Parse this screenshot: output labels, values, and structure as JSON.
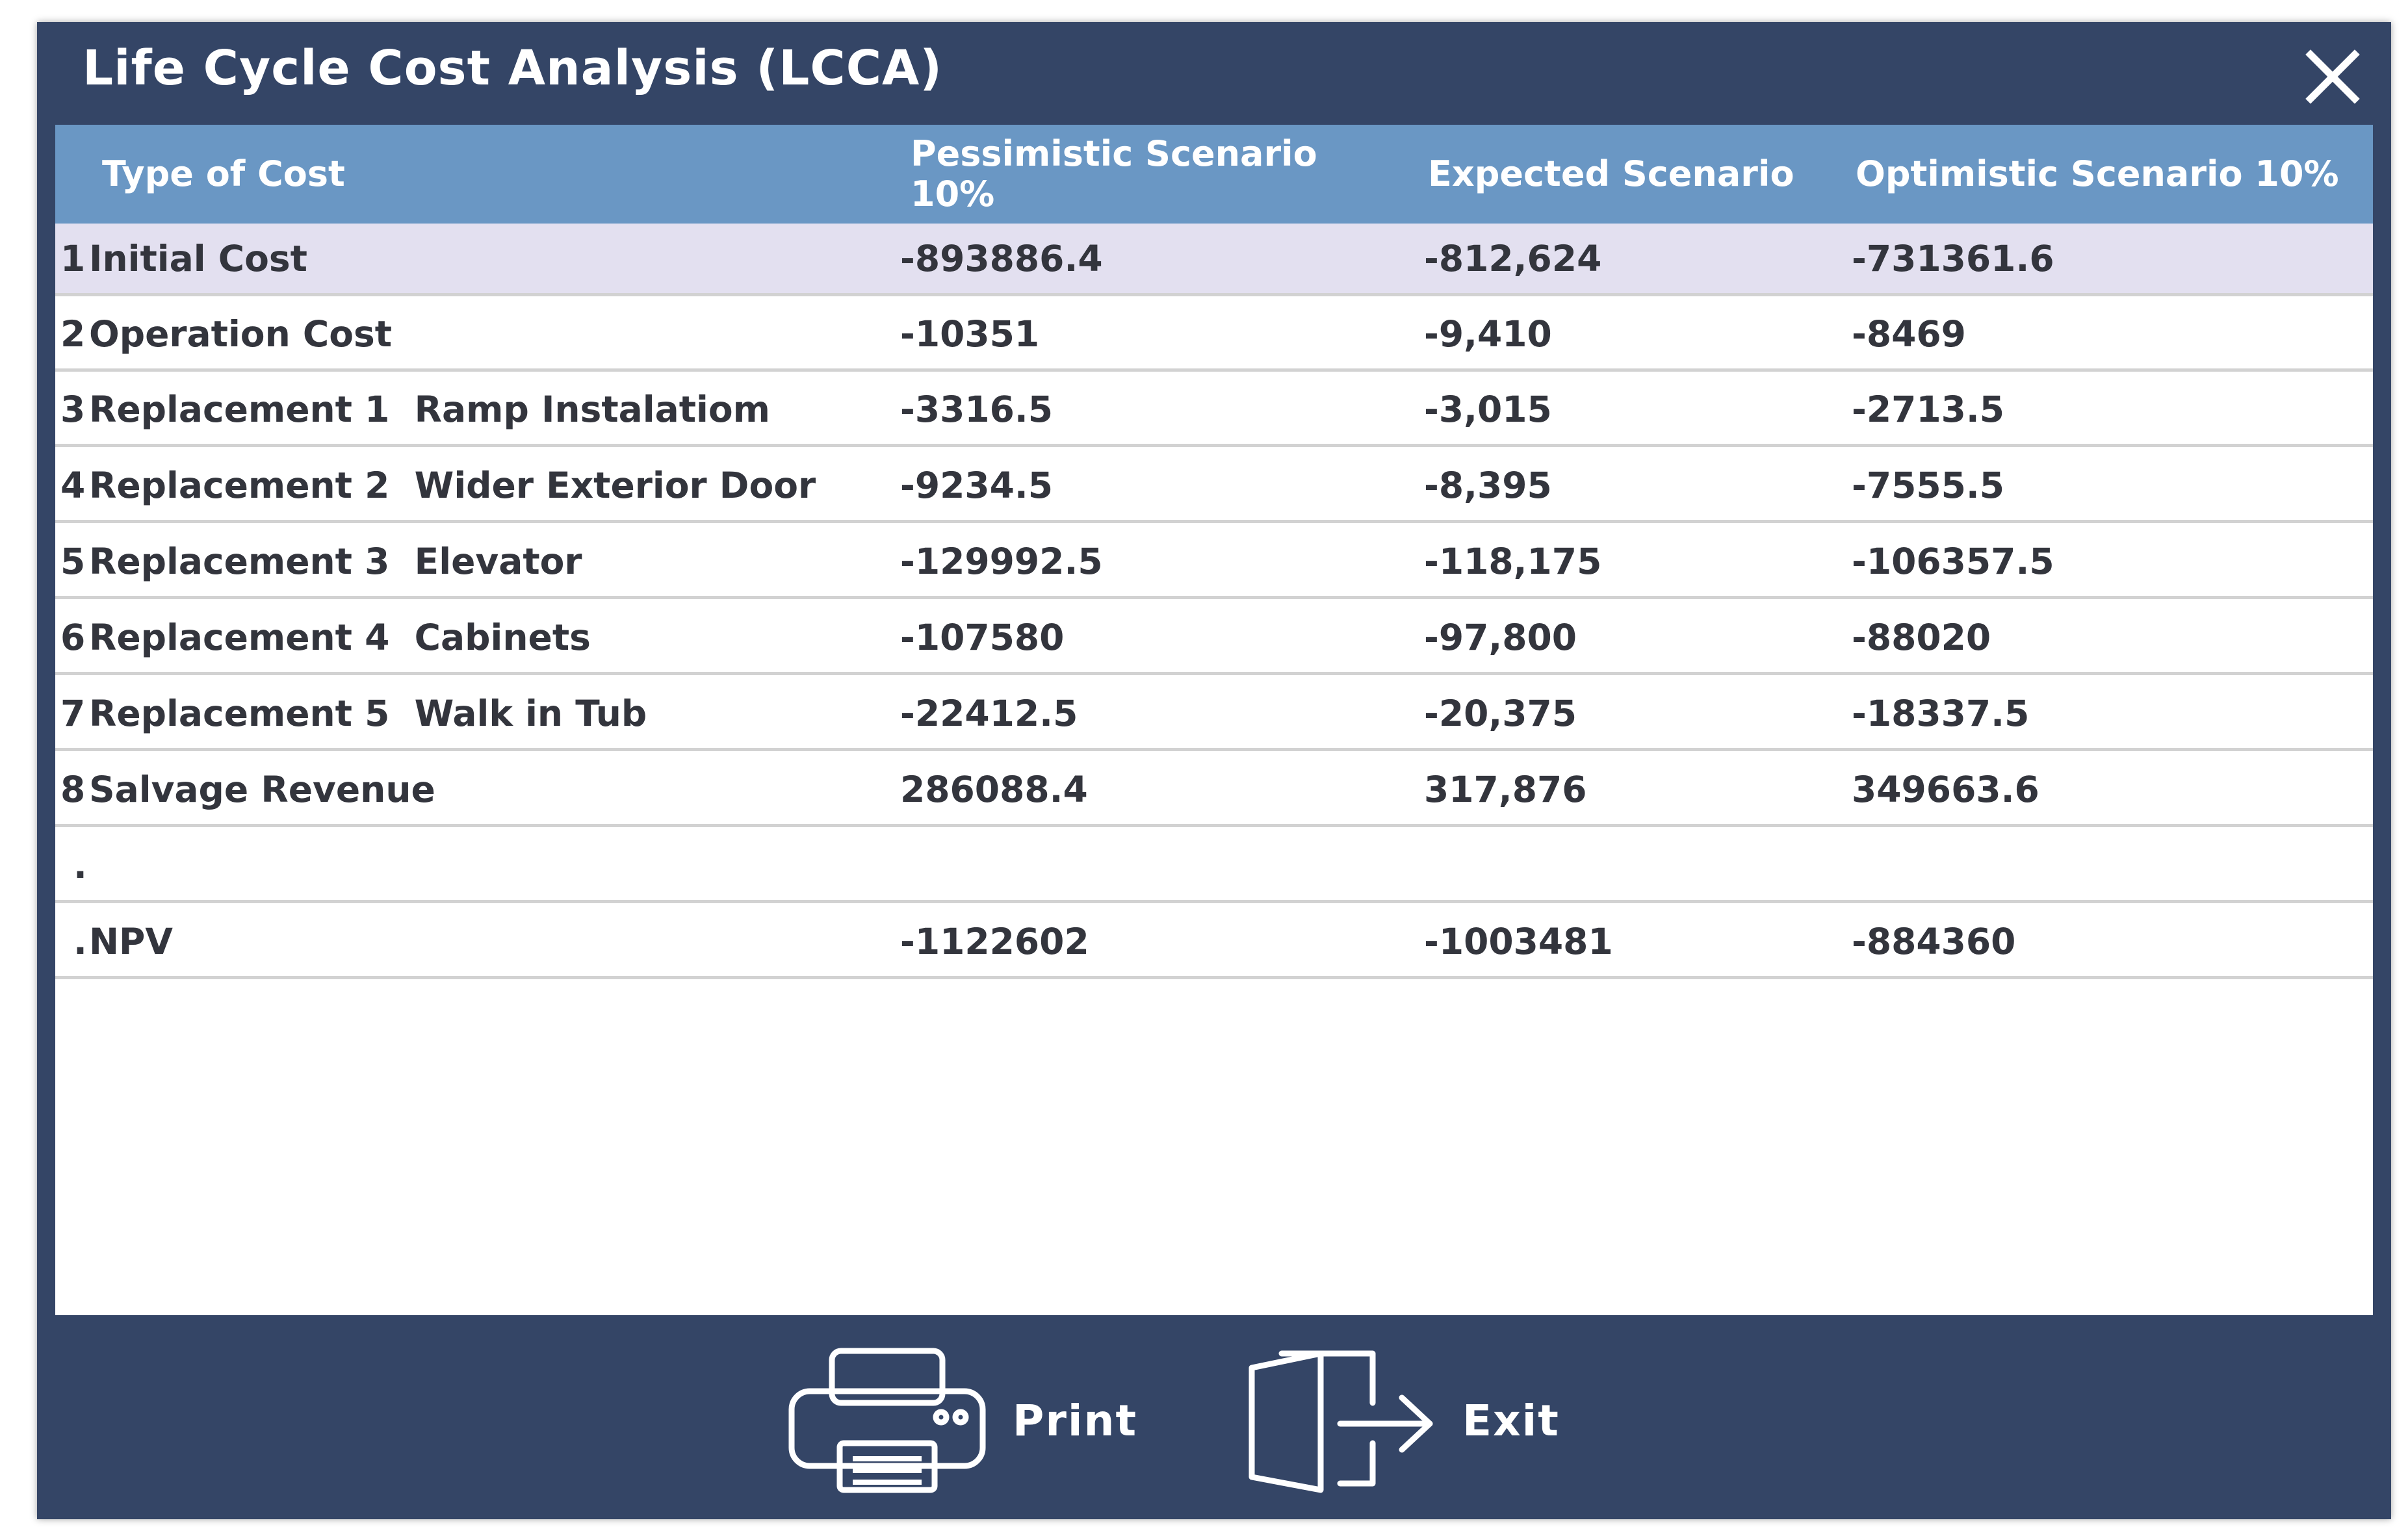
{
  "window": {
    "title": "Life Cycle Cost Analysis (LCCA)",
    "close_label": "X"
  },
  "table": {
    "headers": {
      "type": "Type of Cost",
      "pessimistic_line1": "Pessimistic Scenario",
      "pessimistic_line2": "10%",
      "expected": "Expected Scenario",
      "optimistic": "Optimistic Scenario 10%"
    },
    "rows": [
      {
        "index": "1",
        "type": "Initial Cost",
        "pessimistic": "-893886.4",
        "expected": "-812,624",
        "optimistic": "-731361.6"
      },
      {
        "index": "2",
        "type": "Operation Cost",
        "pessimistic": "-10351",
        "expected": "-9,410",
        "optimistic": "-8469"
      },
      {
        "index": "3",
        "type": "Replacement 1  Ramp Instalatiom",
        "pessimistic": "-3316.5",
        "expected": "-3,015",
        "optimistic": "-2713.5"
      },
      {
        "index": "4",
        "type": "Replacement 2  Wider Exterior Door",
        "pessimistic": "-9234.5",
        "expected": "-8,395",
        "optimistic": "-7555.5"
      },
      {
        "index": "5",
        "type": "Replacement 3  Elevator",
        "pessimistic": "-129992.5",
        "expected": "-118,175",
        "optimistic": "-106357.5"
      },
      {
        "index": "6",
        "type": "Replacement 4  Cabinets",
        "pessimistic": "-107580",
        "expected": "-97,800",
        "optimistic": "-88020"
      },
      {
        "index": "7",
        "type": "Replacement 5  Walk in Tub",
        "pessimistic": "-22412.5",
        "expected": "-20,375",
        "optimistic": "-18337.5"
      },
      {
        "index": "8",
        "type": "Salvage Revenue",
        "pessimistic": "286088.4",
        "expected": "317,876",
        "optimistic": "349663.6"
      },
      {
        "index": ".",
        "type": "",
        "pessimistic": "",
        "expected": "",
        "optimistic": ""
      },
      {
        "index": ".",
        "type": "NPV",
        "pessimistic": "-1122602",
        "expected": "-1003481",
        "optimistic": "-884360"
      }
    ]
  },
  "footer": {
    "print_label": "Print",
    "exit_label": "Exit"
  },
  "colors": {
    "window_bg": "#344566",
    "header_bg": "#6a97c4",
    "selected_row_bg": "#e3e0f0"
  },
  "icons": {
    "close": "close-icon",
    "print": "printer-icon",
    "exit": "exit-door-icon"
  }
}
